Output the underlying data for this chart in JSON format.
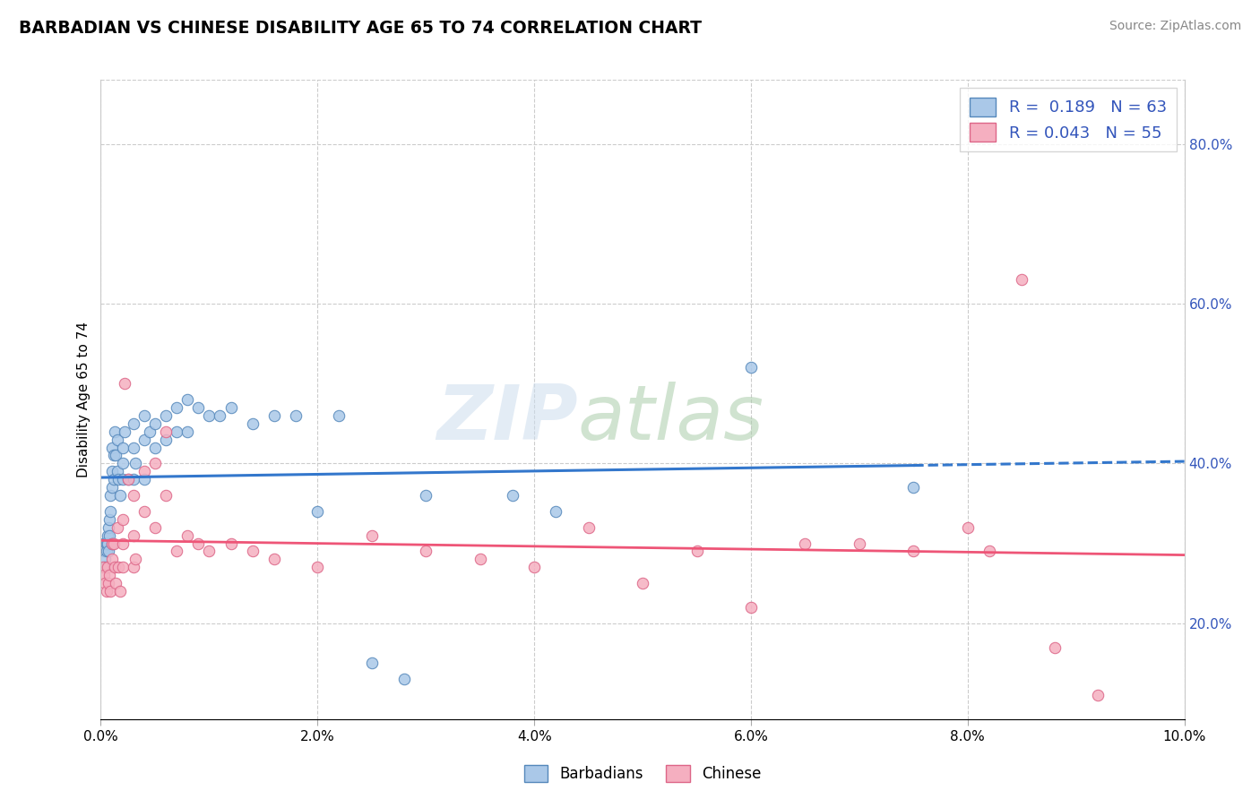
{
  "title": "BARBADIAN VS CHINESE DISABILITY AGE 65 TO 74 CORRELATION CHART",
  "source_text": "Source: ZipAtlas.com",
  "ylabel": "Disability Age 65 to 74",
  "xlim": [
    0.0,
    0.1
  ],
  "ylim": [
    0.08,
    0.88
  ],
  "xtick_values": [
    0.0,
    0.02,
    0.04,
    0.06,
    0.08,
    0.1
  ],
  "xtick_labels": [
    "0.0%",
    "2.0%",
    "4.0%",
    "6.0%",
    "8.0%",
    "10.0%"
  ],
  "ytick_values": [
    0.2,
    0.4,
    0.6,
    0.8
  ],
  "ytick_labels": [
    "20.0%",
    "40.0%",
    "60.0%",
    "80.0%"
  ],
  "barbadian_color": "#aac8e8",
  "chinese_color": "#f5afc0",
  "barbadian_edge": "#5588bb",
  "chinese_edge": "#dd6688",
  "trend_barbadian_color": "#3377cc",
  "trend_chinese_color": "#ee5577",
  "r_barbadian": "0.189",
  "n_barbadian": "63",
  "r_chinese": "0.043",
  "n_chinese": "55",
  "legend_text_color": "#3355bb",
  "barbadian_x": [
    0.0002,
    0.0003,
    0.0004,
    0.0004,
    0.0005,
    0.0005,
    0.0006,
    0.0006,
    0.0007,
    0.0007,
    0.0008,
    0.0008,
    0.0009,
    0.0009,
    0.001,
    0.001,
    0.001,
    0.001,
    0.0012,
    0.0012,
    0.0013,
    0.0014,
    0.0015,
    0.0015,
    0.0016,
    0.0018,
    0.002,
    0.002,
    0.002,
    0.0022,
    0.0025,
    0.003,
    0.003,
    0.003,
    0.0032,
    0.004,
    0.004,
    0.004,
    0.0045,
    0.005,
    0.005,
    0.006,
    0.006,
    0.007,
    0.007,
    0.008,
    0.008,
    0.009,
    0.01,
    0.011,
    0.012,
    0.014,
    0.016,
    0.018,
    0.02,
    0.022,
    0.025,
    0.028,
    0.03,
    0.038,
    0.042,
    0.06,
    0.075
  ],
  "barbadian_y": [
    0.3,
    0.29,
    0.28,
    0.27,
    0.3,
    0.29,
    0.31,
    0.3,
    0.32,
    0.29,
    0.33,
    0.31,
    0.36,
    0.34,
    0.42,
    0.39,
    0.37,
    0.3,
    0.41,
    0.38,
    0.44,
    0.41,
    0.43,
    0.39,
    0.38,
    0.36,
    0.42,
    0.4,
    0.38,
    0.44,
    0.38,
    0.45,
    0.42,
    0.38,
    0.4,
    0.46,
    0.43,
    0.38,
    0.44,
    0.45,
    0.42,
    0.46,
    0.43,
    0.47,
    0.44,
    0.48,
    0.44,
    0.47,
    0.46,
    0.46,
    0.47,
    0.45,
    0.46,
    0.46,
    0.34,
    0.46,
    0.15,
    0.13,
    0.36,
    0.36,
    0.34,
    0.52,
    0.37
  ],
  "chinese_x": [
    0.0002,
    0.0003,
    0.0004,
    0.0005,
    0.0006,
    0.0007,
    0.0008,
    0.0009,
    0.001,
    0.001,
    0.0012,
    0.0013,
    0.0014,
    0.0015,
    0.0016,
    0.0018,
    0.002,
    0.002,
    0.002,
    0.0022,
    0.0025,
    0.003,
    0.003,
    0.003,
    0.0032,
    0.004,
    0.004,
    0.005,
    0.005,
    0.006,
    0.006,
    0.007,
    0.008,
    0.009,
    0.01,
    0.012,
    0.014,
    0.016,
    0.02,
    0.025,
    0.03,
    0.035,
    0.04,
    0.045,
    0.05,
    0.055,
    0.06,
    0.065,
    0.07,
    0.075,
    0.08,
    0.082,
    0.085,
    0.088,
    0.092
  ],
  "chinese_y": [
    0.27,
    0.26,
    0.25,
    0.24,
    0.27,
    0.25,
    0.26,
    0.24,
    0.3,
    0.28,
    0.3,
    0.27,
    0.25,
    0.32,
    0.27,
    0.24,
    0.33,
    0.3,
    0.27,
    0.5,
    0.38,
    0.36,
    0.31,
    0.27,
    0.28,
    0.39,
    0.34,
    0.4,
    0.32,
    0.44,
    0.36,
    0.29,
    0.31,
    0.3,
    0.29,
    0.3,
    0.29,
    0.28,
    0.27,
    0.31,
    0.29,
    0.28,
    0.27,
    0.32,
    0.25,
    0.29,
    0.22,
    0.3,
    0.3,
    0.29,
    0.32,
    0.29,
    0.63,
    0.17,
    0.11
  ]
}
